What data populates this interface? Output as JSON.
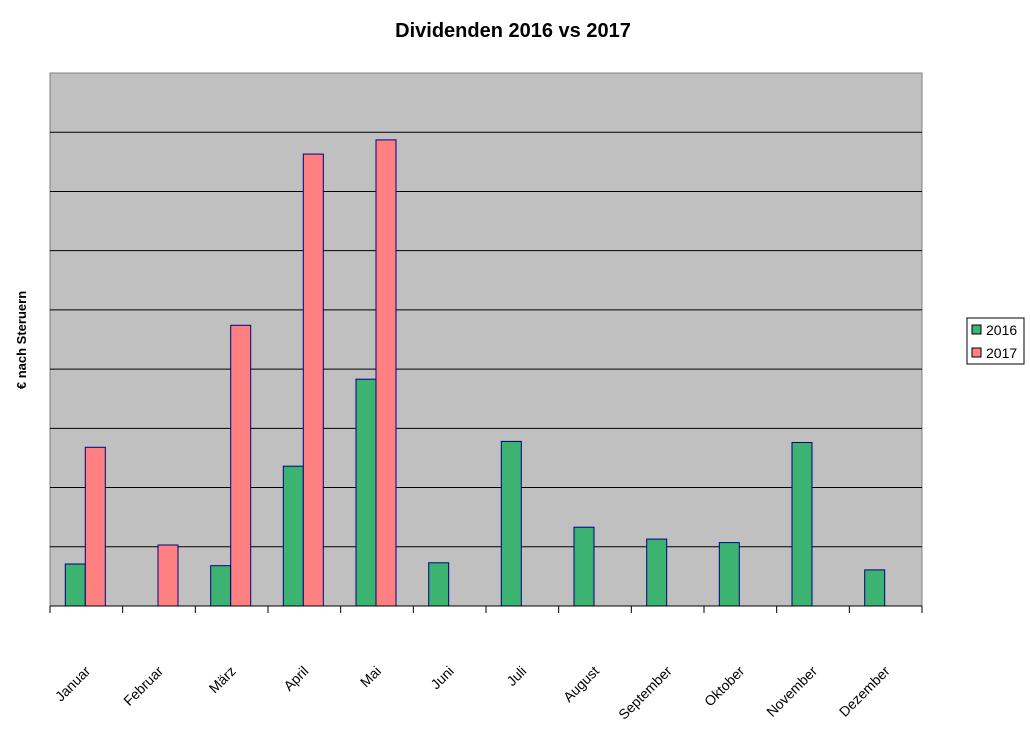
{
  "chart_data": {
    "type": "bar",
    "title": "Dividenden 2016 vs 2017",
    "xlabel": "",
    "ylabel": "€ nach Steruern",
    "categories": [
      "Januar",
      "Februar",
      "März",
      "April",
      "Mai",
      "Juni",
      "Juli",
      "August",
      "September",
      "Oktober",
      "November",
      "Dezember"
    ],
    "ylim": [
      0,
      9
    ],
    "grid": true,
    "y_tick_labels_shown": false,
    "legend_position": "right",
    "series": [
      {
        "name": "2016",
        "color": "#3cb371",
        "values": [
          0.71,
          0,
          0.68,
          2.36,
          3.83,
          0.73,
          2.78,
          1.33,
          1.13,
          1.07,
          2.76,
          0.61
        ]
      },
      {
        "name": "2017",
        "color": "#ff8080",
        "values": [
          2.68,
          1.03,
          4.74,
          7.63,
          7.87,
          0,
          0,
          0,
          0,
          0,
          0,
          0
        ]
      }
    ]
  }
}
